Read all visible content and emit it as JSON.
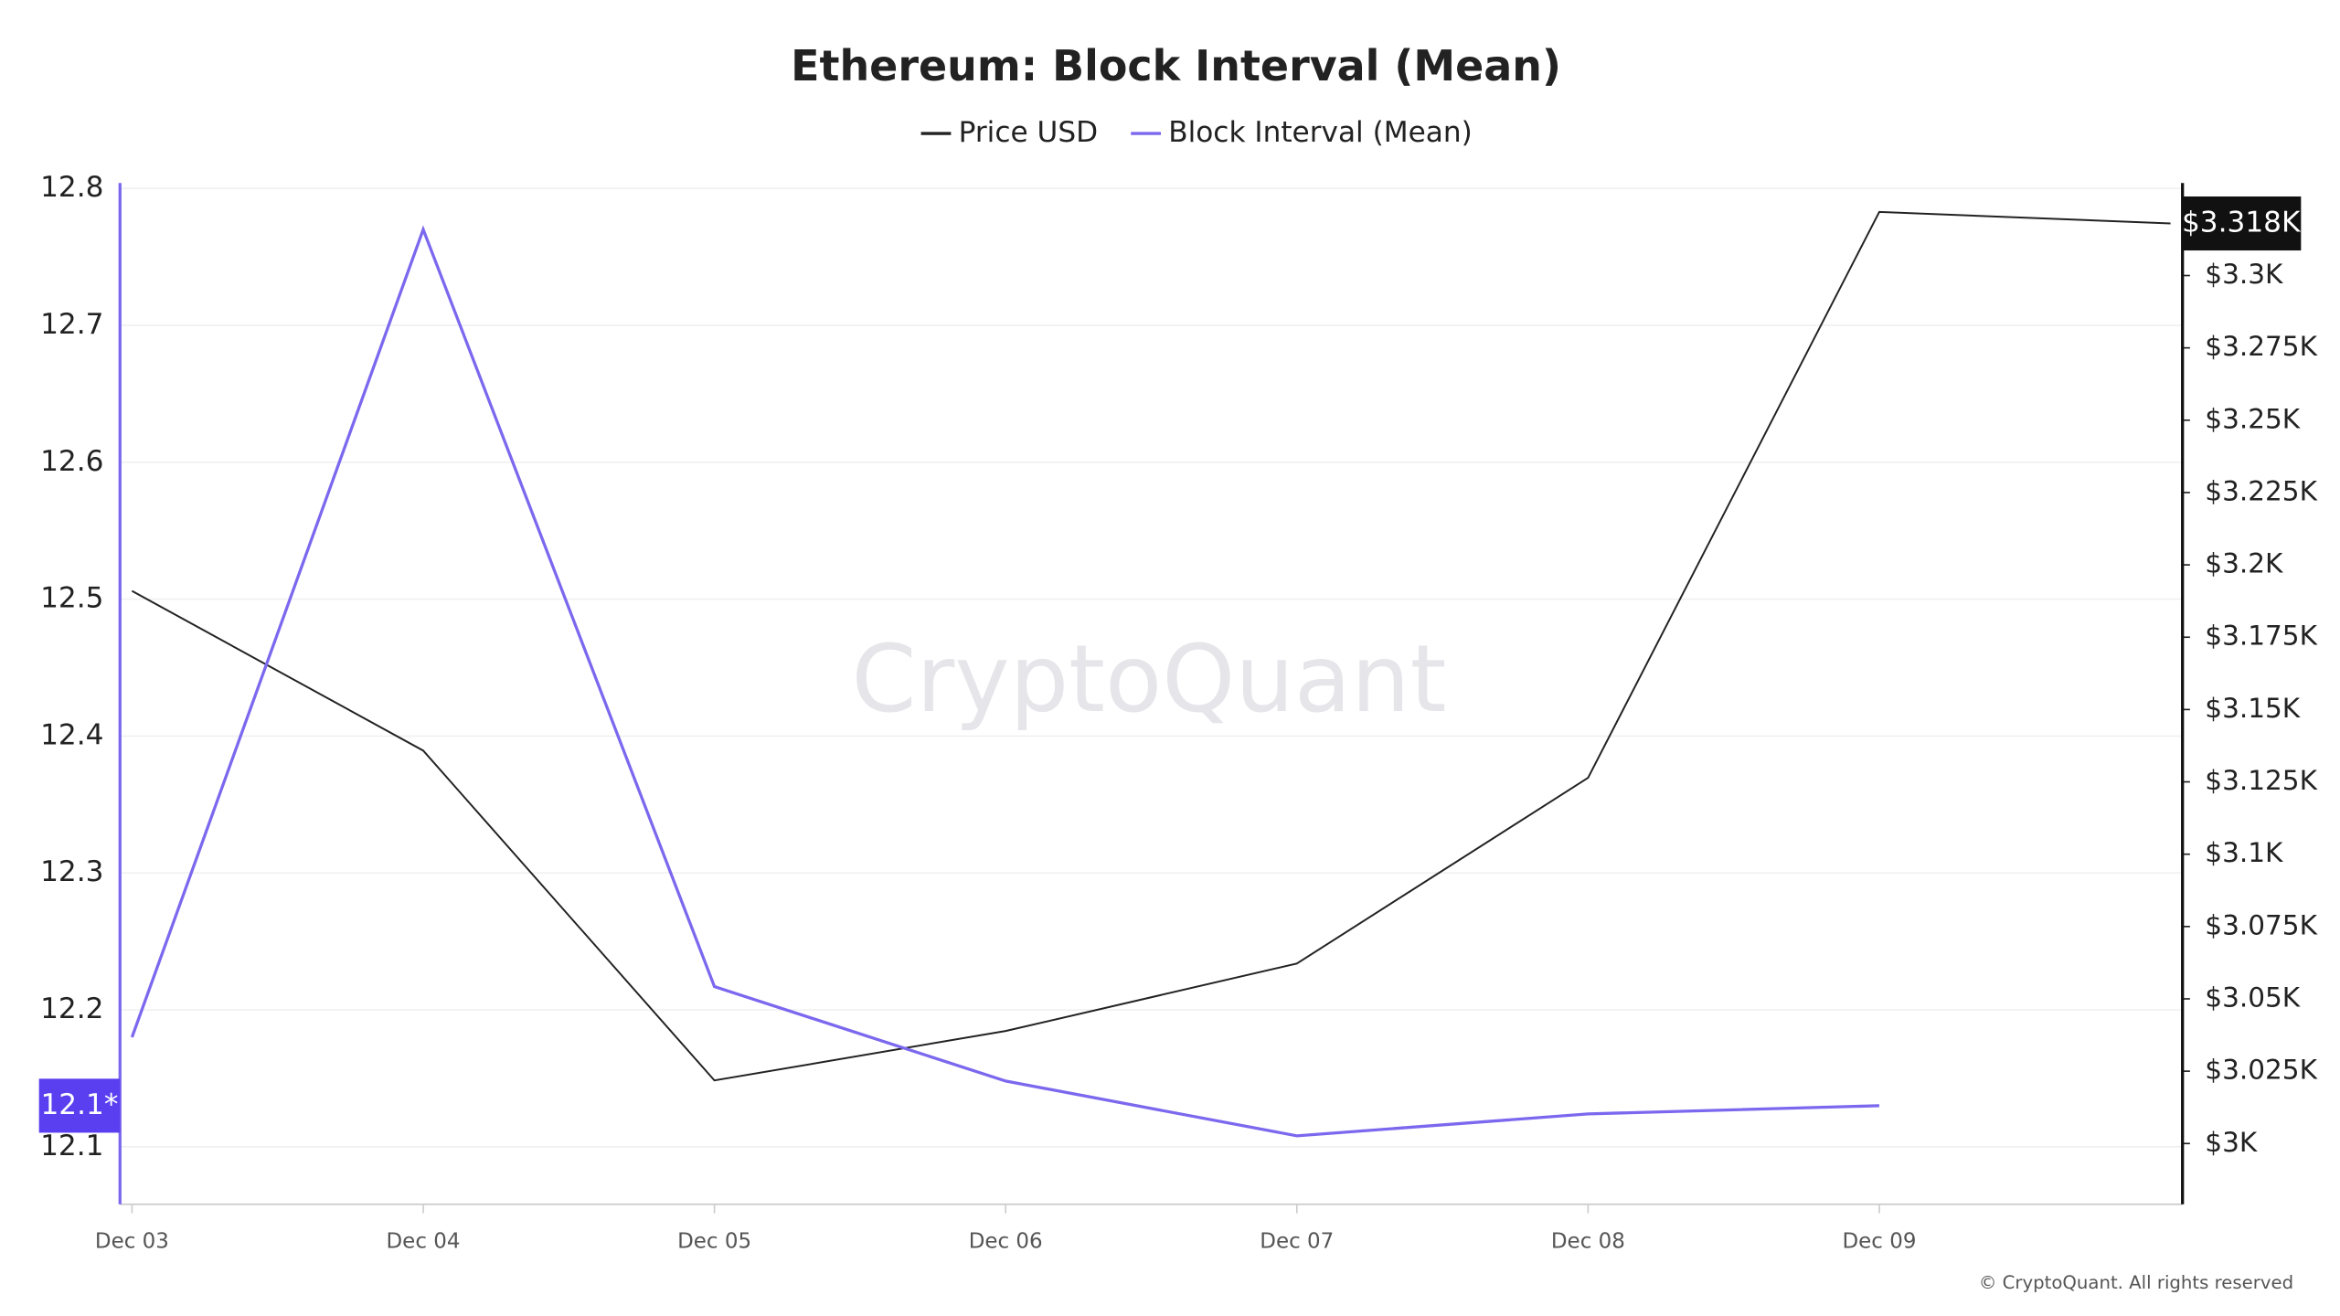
{
  "chart_data": {
    "type": "line",
    "title": "Ethereum: Block Interval (Mean)",
    "categories": [
      "Dec 03",
      "Dec 04",
      "Dec 05",
      "Dec 06",
      "Dec 07",
      "Dec 08",
      "Dec 09",
      null
    ],
    "series": [
      {
        "name": "Price USD",
        "color": "#222222",
        "axis": "y2",
        "values": [
          3191,
          3135.8,
          3021.8,
          3038.9,
          3062.2,
          3126.4,
          3322,
          3318
        ]
      },
      {
        "name": "Block Interval (Mean)",
        "color": "#7b68ee",
        "values": [
          12.18,
          12.77,
          12.217,
          12.148,
          12.108,
          12.124,
          12.13,
          null
        ]
      }
    ],
    "ylim": [
      12.058,
      12.804
    ],
    "yticks": [
      12.1,
      12.2,
      12.3,
      12.4,
      12.5,
      12.6,
      12.7,
      12.8
    ],
    "y2lim": [
      2979,
      3332
    ],
    "y2ticks": [
      {
        "value": 3000,
        "label": "$3K"
      },
      {
        "value": 3025,
        "label": "$3.025K"
      },
      {
        "value": 3050,
        "label": "$3.05K"
      },
      {
        "value": 3075,
        "label": "$3.075K"
      },
      {
        "value": 3100,
        "label": "$3.1K"
      },
      {
        "value": 3125,
        "label": "$3.125K"
      },
      {
        "value": 3150,
        "label": "$3.15K"
      },
      {
        "value": 3175,
        "label": "$3.175K"
      },
      {
        "value": 3200,
        "label": "$3.2K"
      },
      {
        "value": 3225,
        "label": "$3.225K"
      },
      {
        "value": 3250,
        "label": "$3.25K"
      },
      {
        "value": 3275,
        "label": "$3.275K"
      },
      {
        "value": 3300,
        "label": "$3.3K"
      }
    ],
    "y_current": {
      "value": 12.13,
      "label": "12.1*"
    },
    "y2_current": {
      "value": 3318,
      "label": "$3.318K"
    },
    "grid": true,
    "watermark": "CryptoQuant",
    "credit": "© CryptoQuant. All rights reserved"
  }
}
